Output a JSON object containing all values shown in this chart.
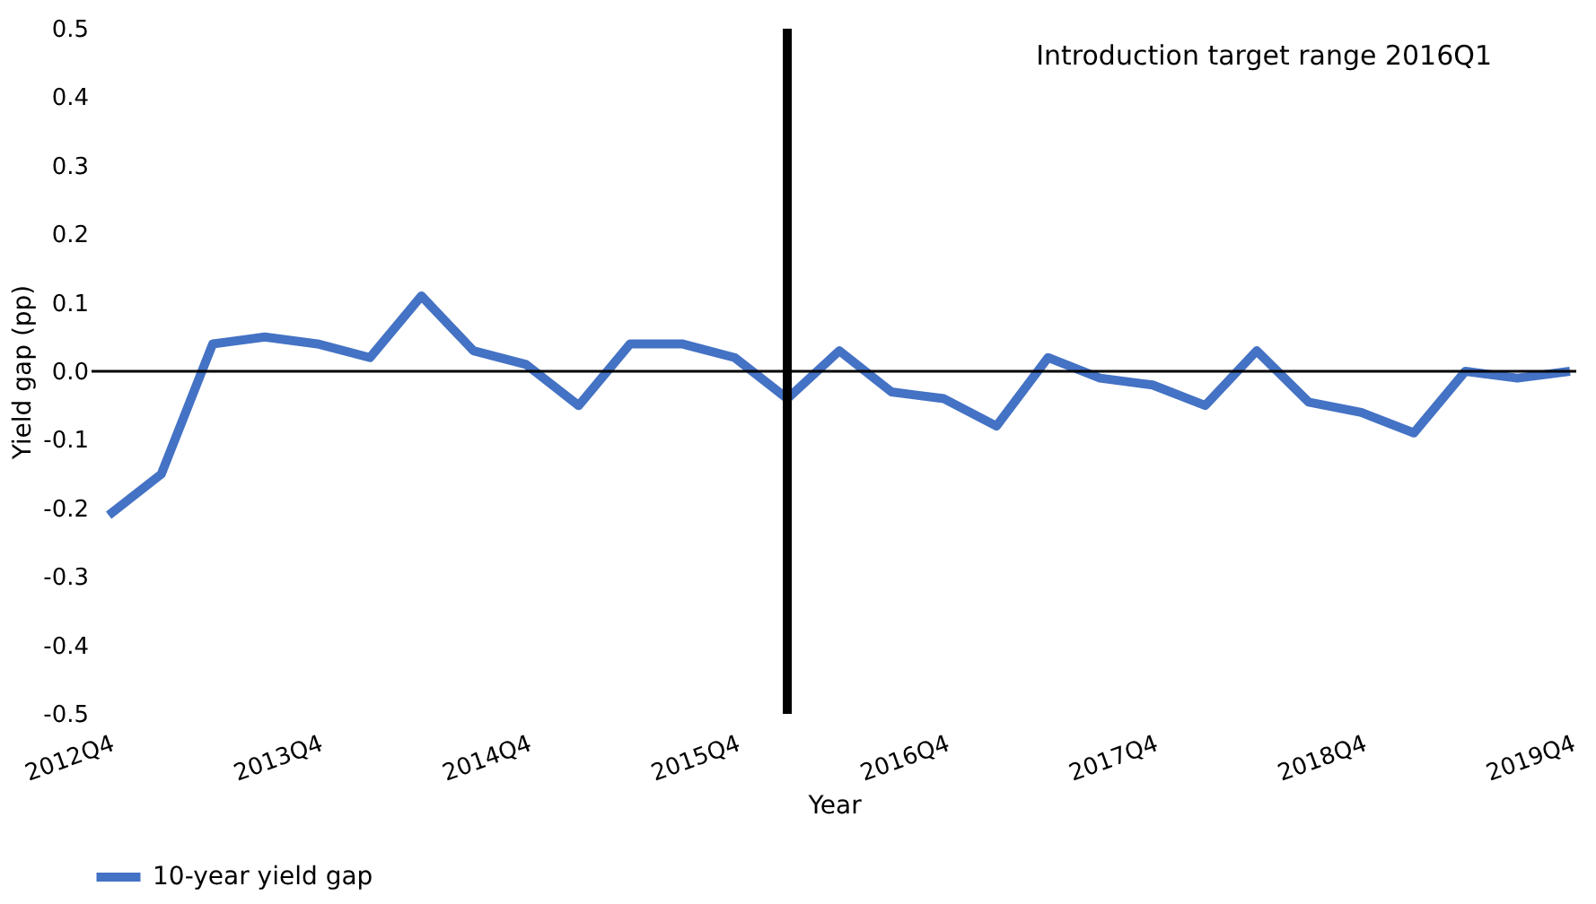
{
  "chart_data": {
    "type": "line",
    "xlabel": "Year",
    "ylabel": "Yield gap (pp)",
    "x": [
      "2012-10",
      "2013-01",
      "2013-04",
      "2013-07",
      "2013-10",
      "2014-01",
      "2014-04",
      "2014-07",
      "2014-10",
      "2015-01",
      "2015-04",
      "2015-07",
      "2015-10",
      "2016-01",
      "2016-04",
      "2016-07",
      "2016-10",
      "2017-01",
      "2017-04",
      "2017-07",
      "2017-10",
      "2018-01",
      "2018-04",
      "2018-07",
      "2018-10",
      "2019-01",
      "2019-04",
      "2019-07",
      "2019-10"
    ],
    "series": [
      {
        "name": "10-year yield gap",
        "color": "#4472c4",
        "values": [
          -0.21,
          -0.15,
          0.04,
          0.05,
          0.04,
          0.02,
          0.11,
          0.03,
          0.01,
          -0.05,
          0.04,
          0.04,
          0.02,
          -0.04,
          0.03,
          -0.03,
          -0.04,
          -0.08,
          0.02,
          -0.01,
          -0.02,
          -0.05,
          0.03,
          -0.045,
          -0.06,
          -0.09,
          0.0,
          -0.01,
          0.0
        ]
      }
    ],
    "xlim": [
      "2012-09-01",
      "2019-10-12"
    ],
    "xticks": [
      {
        "value": "2012-10",
        "label": "2012Q4"
      },
      {
        "value": "2013-10",
        "label": "2013Q4"
      },
      {
        "value": "2014-10",
        "label": "2014Q4"
      },
      {
        "value": "2015-10",
        "label": "2015Q4"
      },
      {
        "value": "2016-10",
        "label": "2016Q4"
      },
      {
        "value": "2017-10",
        "label": "2017Q4"
      },
      {
        "value": "2018-10",
        "label": "2018Q4"
      },
      {
        "value": "2019-10",
        "label": "2019Q4"
      }
    ],
    "ylim": [
      -0.5,
      0.5
    ],
    "yticks": [
      -0.5,
      -0.4,
      -0.3,
      -0.2,
      -0.1,
      {
        "value": 0,
        "label": "0.0"
      },
      0.1,
      0.2,
      0.3,
      0.4,
      0.5
    ],
    "ref_lines": [
      {
        "axis": "y",
        "value": 0,
        "color": "#000000"
      },
      {
        "axis": "x",
        "value": "2016-01",
        "color": "#000000"
      }
    ],
    "annotations": [
      "Introduction target range 2016Q1"
    ],
    "grid": false,
    "legend": "bottom",
    "marker": "none",
    "line_style": "solid"
  }
}
